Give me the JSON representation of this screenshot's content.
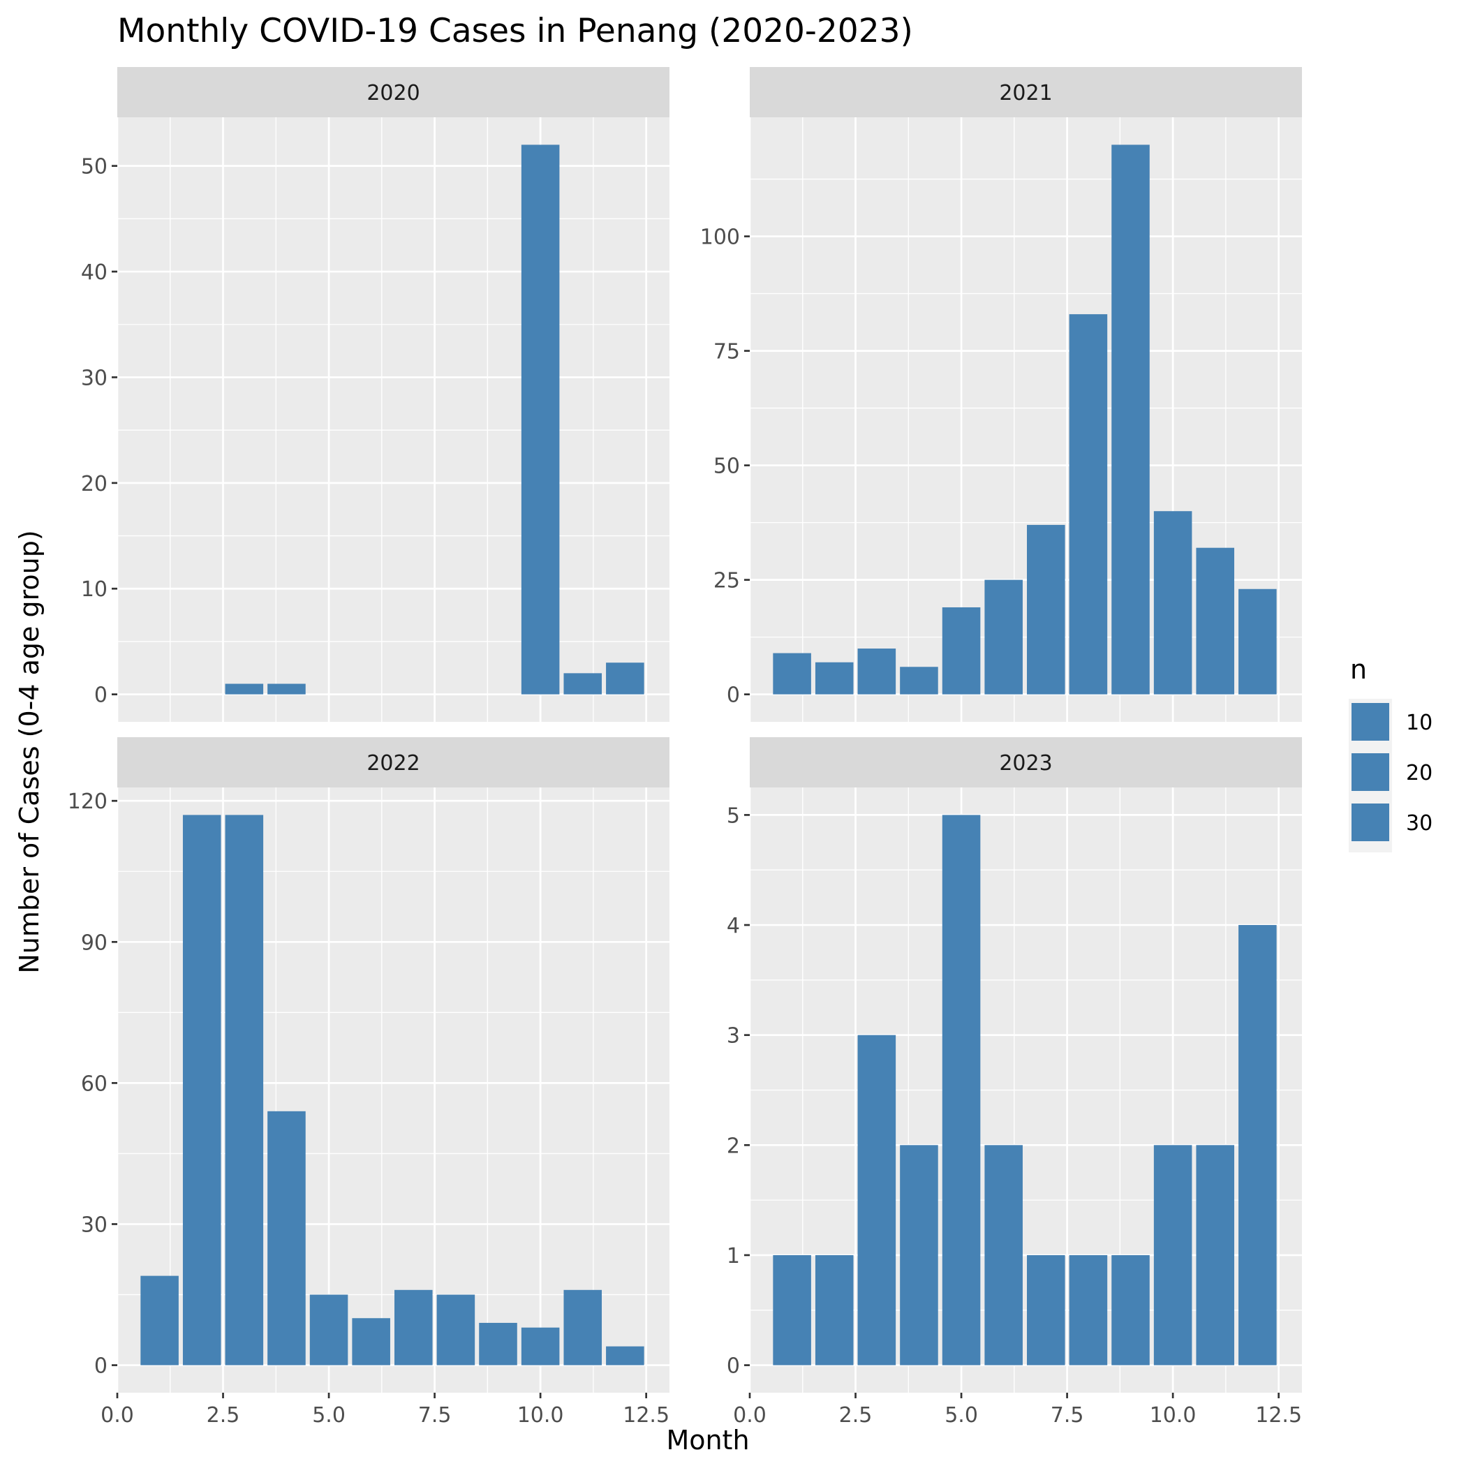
{
  "chart_data": {
    "type": "bar",
    "title": "Monthly COVID-19 Cases in Penang (2020-2023)",
    "xlabel": "Month",
    "ylabel": "Number of Cases (0-4 age group)",
    "x_breaks": [
      "0.0",
      "2.5",
      "5.0",
      "7.5",
      "10.0",
      "12.5"
    ],
    "x_break_values": [
      0,
      2.5,
      5,
      7.5,
      10,
      12.5
    ],
    "xlim": [
      0,
      13.05
    ],
    "grid": true,
    "facets": [
      {
        "label": "2020",
        "x": [
          3,
          4,
          10,
          11,
          12
        ],
        "values": [
          1,
          1,
          52,
          2,
          3
        ],
        "ylim": [
          -2.6,
          54.6
        ],
        "y_breaks": [
          0,
          10,
          20,
          30,
          40,
          50
        ]
      },
      {
        "label": "2021",
        "x": [
          1,
          2,
          3,
          4,
          5,
          6,
          7,
          8,
          9,
          10,
          11,
          12
        ],
        "values": [
          9,
          7,
          10,
          6,
          19,
          25,
          37,
          83,
          120,
          40,
          32,
          23
        ],
        "ylim": [
          -6,
          126
        ],
        "y_breaks": [
          0,
          25,
          50,
          75,
          100
        ]
      },
      {
        "label": "2022",
        "x": [
          1,
          2,
          3,
          4,
          5,
          6,
          7,
          8,
          9,
          10,
          11,
          12
        ],
        "values": [
          19,
          117,
          117,
          54,
          15,
          10,
          16,
          15,
          9,
          8,
          16,
          4
        ],
        "ylim": [
          -5.85,
          122.85
        ],
        "y_breaks": [
          0,
          30,
          60,
          90,
          120
        ]
      },
      {
        "label": "2023",
        "x": [
          1,
          2,
          3,
          4,
          5,
          6,
          7,
          8,
          9,
          10,
          11,
          12
        ],
        "values": [
          1,
          1,
          3,
          2,
          5,
          2,
          1,
          1,
          1,
          2,
          2,
          4
        ],
        "ylim": [
          -0.25,
          5.25
        ],
        "y_breaks": [
          0,
          1,
          2,
          3,
          4,
          5
        ]
      }
    ],
    "legend": {
      "title": "n",
      "placement": "right",
      "entries": [
        "10",
        "20",
        "30"
      ]
    },
    "colors": {
      "bar": "#4682b4",
      "panel": "#ebebeb",
      "strip": "#d9d9d9"
    }
  }
}
